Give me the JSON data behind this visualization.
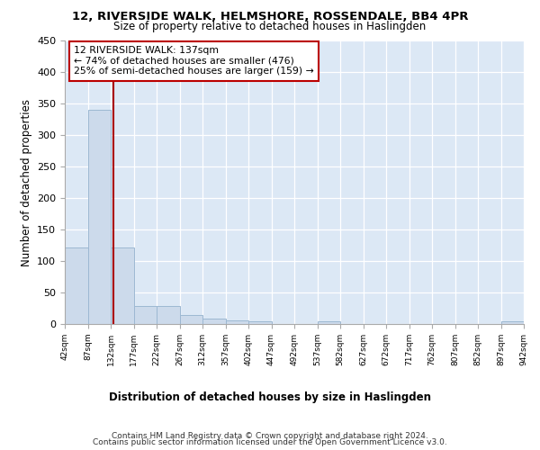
{
  "title": "12, RIVERSIDE WALK, HELMSHORE, ROSSENDALE, BB4 4PR",
  "subtitle": "Size of property relative to detached houses in Haslingden",
  "xlabel": "Distribution of detached houses by size in Haslingden",
  "ylabel": "Number of detached properties",
  "bar_edges": [
    42,
    87,
    132,
    177,
    222,
    267,
    312,
    357,
    402,
    447,
    492,
    537,
    582,
    627,
    672,
    717,
    762,
    807,
    852,
    897,
    942
  ],
  "bar_heights": [
    122,
    340,
    122,
    29,
    29,
    15,
    9,
    6,
    5,
    0,
    0,
    5,
    0,
    0,
    0,
    0,
    0,
    0,
    0,
    5
  ],
  "bar_color": "#ccdaeb",
  "bar_edge_color": "#9db8d2",
  "property_size": 137,
  "property_line_color": "#aa0000",
  "annotation_line1": "12 RIVERSIDE WALK: 137sqm",
  "annotation_line2": "← 74% of detached houses are smaller (476)",
  "annotation_line3": "25% of semi-detached houses are larger (159) →",
  "annotation_box_color": "#bb0000",
  "ylim": [
    0,
    450
  ],
  "yticks": [
    0,
    50,
    100,
    150,
    200,
    250,
    300,
    350,
    400,
    450
  ],
  "bg_color": "#dce8f5",
  "footer_line1": "Contains HM Land Registry data © Crown copyright and database right 2024.",
  "footer_line2": "Contains public sector information licensed under the Open Government Licence v3.0."
}
